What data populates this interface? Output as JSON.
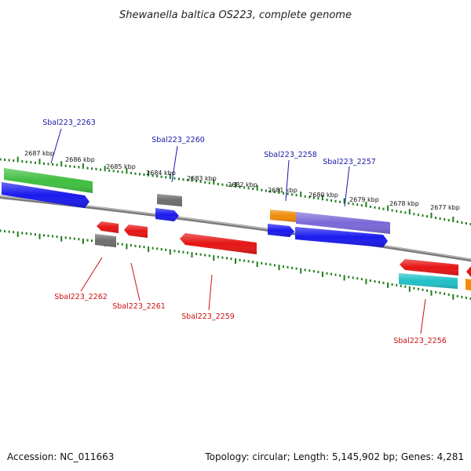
{
  "title": "Shewanella baltica OS223, complete genome",
  "footer": {
    "accession": "Accession: NC_011663",
    "summary": "Topology: circular; Length: 5,145,902 bp; Genes: 4,281"
  },
  "ticks": [
    "2687 kbp",
    "2686 kbp",
    "2685 kbp",
    "2684 kbp",
    "2683 kbp",
    "2682 kbp",
    "2681 kbp",
    "2680 kbp",
    "2679 kbp",
    "2678 kbp",
    "2677 kbp"
  ],
  "colors": {
    "forward_label": "#1a1aaa",
    "reverse_label": "#cc1111",
    "tick": "#1e7d1e",
    "backbone": "#808080",
    "green": "#3fbf3f",
    "blue": "#1a1aee",
    "gray": "#6e6e6e",
    "red": "#e61414",
    "orange": "#f08c0a",
    "purple": "#7b68d8",
    "cyan": "#20c0c8"
  },
  "gene_labels": {
    "forward": [
      "Sbal223_2263",
      "Sbal223_2260",
      "Sbal223_2258",
      "Sbal223_2257"
    ],
    "reverse": [
      "Sbal223_2262",
      "Sbal223_2261",
      "Sbal223_2259",
      "Sbal223_2256"
    ]
  }
}
